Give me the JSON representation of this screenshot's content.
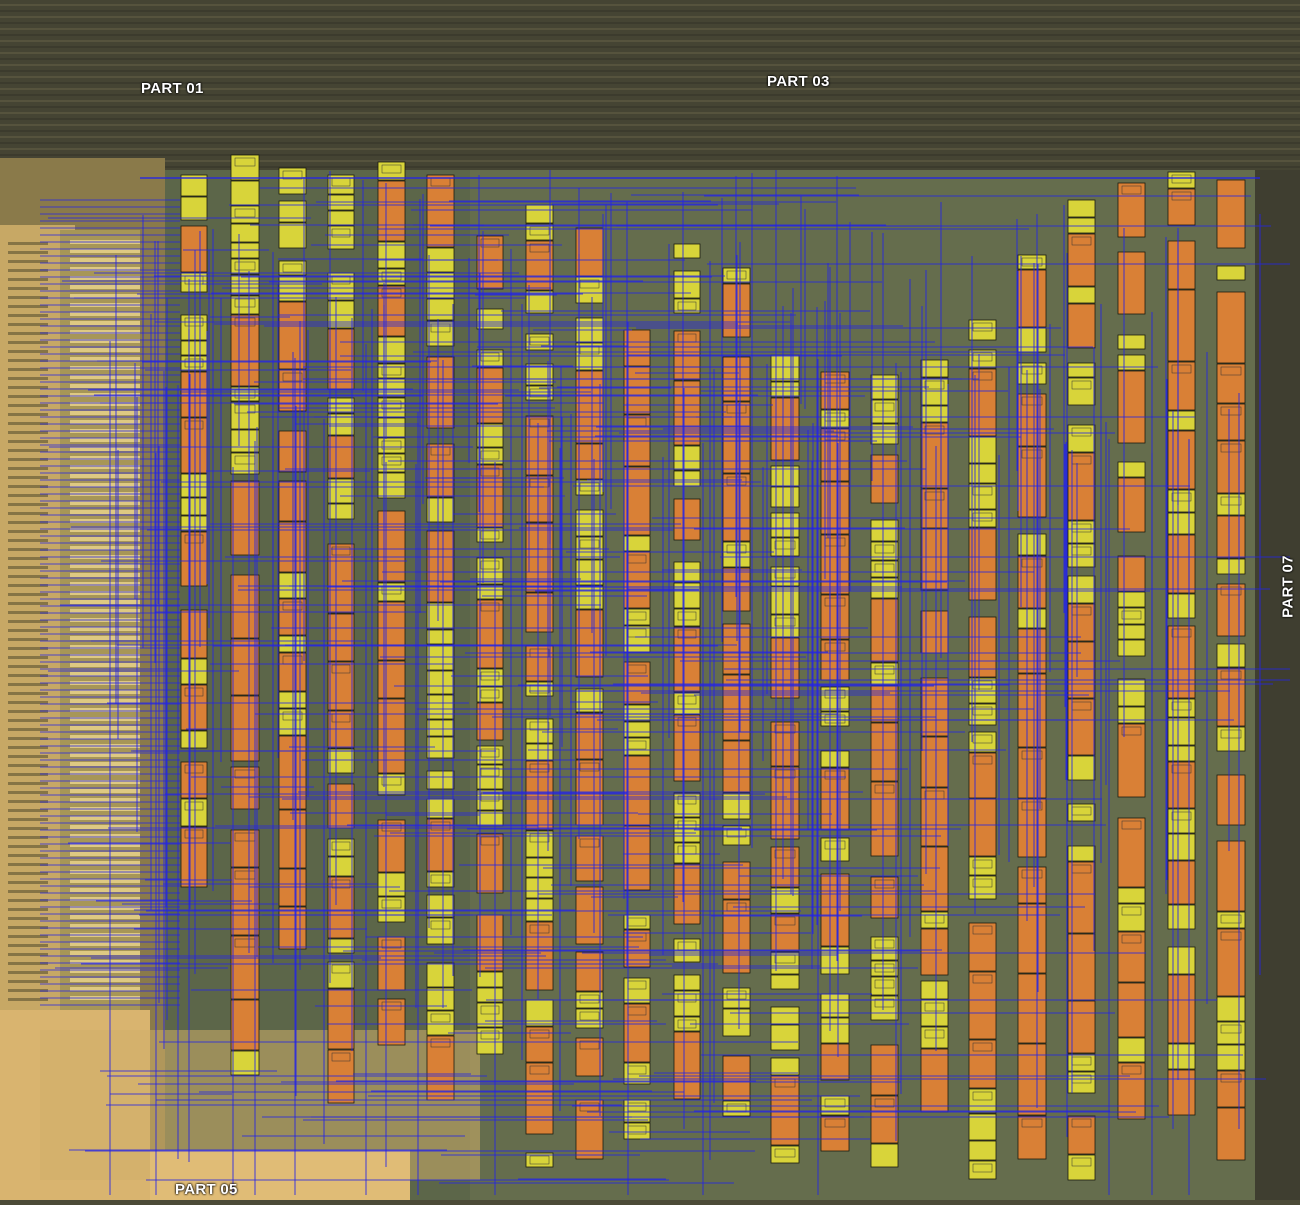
{
  "labels": {
    "part01": "PART 01",
    "part03": "PART 03",
    "part05": "PART 05",
    "part07": "PART 07"
  },
  "colors": {
    "background_top": "#454433",
    "core": "#5e6a4a",
    "pad_metal": "#d9b46f",
    "route_wire": "#2424e6",
    "cell_yellow": "#d8d43a",
    "cell_orange": "#d98036",
    "cell_outline": "#1b1b10",
    "label": "#ffffff"
  },
  "layers": {
    "cells": "standard cells (DFF / logic) annotated",
    "routing": "blue net overlay"
  }
}
